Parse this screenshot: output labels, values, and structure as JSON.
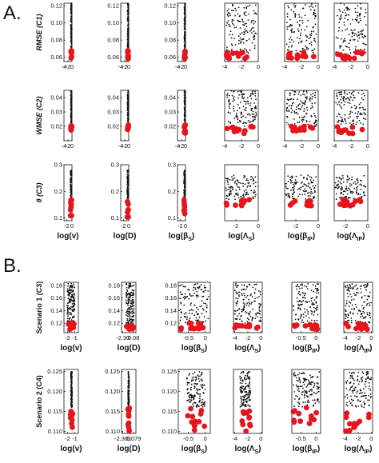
{
  "figure": {
    "label_a": "A.",
    "label_b": "B."
  },
  "colors": {
    "black": "#111111",
    "red": "#e8141c"
  },
  "chart_data": [
    {
      "id": "A-r1-c1",
      "type": "scatter",
      "ylabel": "RMSE (C1)",
      "xticks": [
        "-4",
        "-2",
        "0"
      ],
      "yticks": [
        "0.06",
        "0.08",
        "0.10",
        "0.12"
      ],
      "xlim": [
        -4,
        0
      ],
      "ylim": [
        0.055,
        0.123
      ],
      "black": {
        "xr": [
          -0.6,
          -0.1
        ],
        "yr": [
          0.065,
          0.123
        ],
        "n": 120
      },
      "red": {
        "xr": [
          -0.55,
          -0.1
        ],
        "yr": [
          0.058,
          0.068
        ],
        "n": 10
      }
    },
    {
      "id": "A-r1-c2",
      "type": "scatter",
      "xticks": [
        "-4",
        "-2",
        "0"
      ],
      "yticks": [
        "0.06",
        "0.08",
        "0.10",
        "0.12"
      ],
      "xlim": [
        -4,
        0
      ],
      "ylim": [
        0.055,
        0.123
      ],
      "black": {
        "xr": [
          -0.6,
          -0.1
        ],
        "yr": [
          0.065,
          0.123
        ],
        "n": 120
      },
      "red": {
        "xr": [
          -0.55,
          -0.1
        ],
        "yr": [
          0.058,
          0.068
        ],
        "n": 10
      }
    },
    {
      "id": "A-r1-c3",
      "type": "scatter",
      "xticks": [
        "-4",
        "-2",
        "0"
      ],
      "yticks": [
        "0.06",
        "0.08",
        "0.10",
        "0.12"
      ],
      "xlim": [
        -4,
        0
      ],
      "ylim": [
        0.055,
        0.123
      ],
      "black": {
        "xr": [
          -0.6,
          -0.1
        ],
        "yr": [
          0.065,
          0.123
        ],
        "n": 120
      },
      "red": {
        "xr": [
          -0.55,
          -0.1
        ],
        "yr": [
          0.058,
          0.068
        ],
        "n": 10
      }
    },
    {
      "id": "A-r1-c4",
      "type": "scatter",
      "xticks": [
        "-4",
        "-2",
        "0"
      ],
      "yticks": [],
      "xlim": [
        -4,
        0
      ],
      "ylim": [
        0.055,
        0.123
      ],
      "black": {
        "xr": [
          -3.8,
          -0.2
        ],
        "yr": [
          0.065,
          0.123
        ],
        "n": 130
      },
      "red": {
        "xr": [
          -3.8,
          -0.5
        ],
        "yr": [
          0.058,
          0.066
        ],
        "n": 12
      }
    },
    {
      "id": "A-r1-c5",
      "type": "scatter",
      "xticks": [
        "-4",
        "-2",
        "0"
      ],
      "yticks": [],
      "xlim": [
        -4,
        0
      ],
      "ylim": [
        0.055,
        0.123
      ],
      "black": {
        "xr": [
          -3.8,
          -0.2
        ],
        "yr": [
          0.065,
          0.123
        ],
        "n": 130
      },
      "red": {
        "xr": [
          -3.8,
          -0.5
        ],
        "yr": [
          0.058,
          0.066
        ],
        "n": 12
      }
    },
    {
      "id": "A-r1-c6",
      "type": "scatter",
      "xticks": [
        "-4",
        "-2",
        "0"
      ],
      "yticks": [],
      "xlim": [
        -4,
        0
      ],
      "ylim": [
        0.055,
        0.123
      ],
      "black": {
        "xr": [
          -3.8,
          -0.2
        ],
        "yr": [
          0.065,
          0.123
        ],
        "n": 130
      },
      "red": {
        "xr": [
          -3.8,
          -0.5
        ],
        "yr": [
          0.058,
          0.066
        ],
        "n": 12
      }
    },
    {
      "id": "A-r2-c1",
      "type": "scatter",
      "ylabel": "WMSE (C2)",
      "xticks": [
        "-4",
        "-2",
        "0"
      ],
      "yticks": [
        "0.02",
        "0.03",
        "0.04"
      ],
      "xlim": [
        -4,
        0
      ],
      "ylim": [
        0.01,
        0.045
      ],
      "black": {
        "xr": [
          -0.6,
          -0.1
        ],
        "yr": [
          0.019,
          0.045
        ],
        "n": 110
      },
      "red": {
        "xr": [
          -0.55,
          -0.1
        ],
        "yr": [
          0.015,
          0.021
        ],
        "n": 9
      }
    },
    {
      "id": "A-r2-c2",
      "type": "scatter",
      "xticks": [
        "-4",
        "-2",
        "0"
      ],
      "yticks": [
        "0.02",
        "0.03",
        "0.04"
      ],
      "xlim": [
        -4,
        0
      ],
      "ylim": [
        0.01,
        0.045
      ],
      "black": {
        "xr": [
          -0.6,
          -0.1
        ],
        "yr": [
          0.019,
          0.045
        ],
        "n": 110
      },
      "red": {
        "xr": [
          -0.55,
          -0.1
        ],
        "yr": [
          0.015,
          0.021
        ],
        "n": 9
      }
    },
    {
      "id": "A-r2-c3",
      "type": "scatter",
      "xticks": [
        "-4",
        "-2",
        "0"
      ],
      "yticks": [
        "0.02",
        "0.03",
        "0.04"
      ],
      "xlim": [
        -4,
        0
      ],
      "ylim": [
        0.01,
        0.045
      ],
      "black": {
        "xr": [
          -0.6,
          -0.1
        ],
        "yr": [
          0.019,
          0.045
        ],
        "n": 110
      },
      "red": {
        "xr": [
          -0.55,
          -0.1
        ],
        "yr": [
          0.015,
          0.021
        ],
        "n": 9
      }
    },
    {
      "id": "A-r2-c4",
      "type": "scatter",
      "xticks": [
        "-4",
        "-2",
        "0"
      ],
      "yticks": [],
      "xlim": [
        -4,
        0
      ],
      "ylim": [
        0.01,
        0.045
      ],
      "black": {
        "xr": [
          -3.8,
          -0.2
        ],
        "yr": [
          0.02,
          0.045
        ],
        "n": 130
      },
      "red": {
        "xr": [
          -3.8,
          -0.5
        ],
        "yr": [
          0.015,
          0.02
        ],
        "n": 12
      }
    },
    {
      "id": "A-r2-c5",
      "type": "scatter",
      "xticks": [
        "-4",
        "-2",
        "0"
      ],
      "yticks": [],
      "xlim": [
        -4,
        0
      ],
      "ylim": [
        0.01,
        0.045
      ],
      "black": {
        "xr": [
          -3.8,
          -0.2
        ],
        "yr": [
          0.02,
          0.045
        ],
        "n": 130
      },
      "red": {
        "xr": [
          -3.8,
          -0.5
        ],
        "yr": [
          0.015,
          0.02
        ],
        "n": 12
      }
    },
    {
      "id": "A-r2-c6",
      "type": "scatter",
      "xticks": [
        "-4",
        "-2",
        "0"
      ],
      "yticks": [],
      "xlim": [
        -4,
        0
      ],
      "ylim": [
        0.01,
        0.045
      ],
      "black": {
        "xr": [
          -3.8,
          -0.2
        ],
        "yr": [
          0.02,
          0.045
        ],
        "n": 130
      },
      "red": {
        "xr": [
          -3.8,
          -0.5
        ],
        "yr": [
          0.015,
          0.02
        ],
        "n": 12
      }
    },
    {
      "id": "A-r3-c1",
      "type": "scatter",
      "ylabel": "θ (C3)",
      "xlabel": "log(v)",
      "xticks": [
        "-2",
        "0"
      ],
      "yticks": [
        "0.1",
        "0.2",
        "0.3"
      ],
      "xlim": [
        -3,
        0
      ],
      "ylim": [
        0.09,
        0.3
      ],
      "black": {
        "xr": [
          -0.6,
          -0.1
        ],
        "yr": [
          0.17,
          0.28
        ],
        "n": 80
      },
      "red": {
        "xr": [
          -0.6,
          -0.1
        ],
        "yr": [
          0.1,
          0.17
        ],
        "n": 8
      }
    },
    {
      "id": "A-r3-c2",
      "type": "scatter",
      "xlabel": "log(D)",
      "xticks": [
        "-2",
        "0"
      ],
      "yticks": [
        "0.1",
        "0.2",
        "0.3"
      ],
      "xlim": [
        -3,
        0
      ],
      "ylim": [
        0.09,
        0.3
      ],
      "black": {
        "xr": [
          -0.6,
          -0.1
        ],
        "yr": [
          0.17,
          0.28
        ],
        "n": 80
      },
      "red": {
        "xr": [
          -0.6,
          -0.1
        ],
        "yr": [
          0.1,
          0.17
        ],
        "n": 8
      }
    },
    {
      "id": "A-r3-c3",
      "type": "scatter",
      "xlabel": "log(βS)",
      "xticks": [
        "-2",
        "0"
      ],
      "yticks": [
        "0.1",
        "0.2",
        "0.3"
      ],
      "xlim": [
        -3,
        0
      ],
      "ylim": [
        0.09,
        0.3
      ],
      "black": {
        "xr": [
          -0.6,
          -0.1
        ],
        "yr": [
          0.17,
          0.28
        ],
        "n": 80
      },
      "red": {
        "xr": [
          -0.6,
          -0.1
        ],
        "yr": [
          0.1,
          0.17
        ],
        "n": 8
      }
    },
    {
      "id": "A-r3-c4",
      "type": "scatter",
      "xlabel": "log(ΛS)",
      "xticks": [
        "-2",
        "0"
      ],
      "yticks": [],
      "xlim": [
        -3,
        0
      ],
      "ylim": [
        0.09,
        0.3
      ],
      "black": {
        "xr": [
          -2.9,
          -0.2
        ],
        "yr": [
          0.17,
          0.26
        ],
        "n": 110
      },
      "red": {
        "xr": [
          -2.9,
          -0.5
        ],
        "yr": [
          0.145,
          0.17
        ],
        "n": 12
      }
    },
    {
      "id": "A-r3-c5",
      "type": "scatter",
      "xlabel": "log(βIP)",
      "xticks": [
        "-2",
        "0"
      ],
      "yticks": [],
      "xlim": [
        -3,
        0
      ],
      "ylim": [
        0.09,
        0.3
      ],
      "black": {
        "xr": [
          -2.9,
          -0.2
        ],
        "yr": [
          0.17,
          0.26
        ],
        "n": 110
      },
      "red": {
        "xr": [
          -2.9,
          -0.5
        ],
        "yr": [
          0.145,
          0.17
        ],
        "n": 12
      }
    },
    {
      "id": "A-r3-c6",
      "type": "scatter",
      "xlabel": "log(ΛIP)",
      "xticks": [
        "-2",
        "0"
      ],
      "yticks": [],
      "xlim": [
        -3,
        0
      ],
      "ylim": [
        0.09,
        0.3
      ],
      "black": {
        "xr": [
          -2.9,
          -0.2
        ],
        "yr": [
          0.17,
          0.26
        ],
        "n": 110
      },
      "red": {
        "xr": [
          -2.9,
          -0.5
        ],
        "yr": [
          0.145,
          0.17
        ],
        "n": 12
      }
    },
    {
      "id": "B-r1-c1",
      "type": "scatter",
      "ylabel": "Scenario 1 (C3)",
      "xlabel": "log(v)",
      "xticks": [
        "-2",
        "-1"
      ],
      "yticks": [
        "0.12",
        "0.14",
        "0.16",
        "0.18"
      ],
      "xlim": [
        -2.5,
        -0.5
      ],
      "ylim": [
        0.105,
        0.185
      ],
      "black": {
        "xr": [
          -2.05,
          -1.0
        ],
        "yr": [
          0.118,
          0.183
        ],
        "n": 150
      },
      "red": {
        "xr": [
          -1.95,
          -1.1
        ],
        "yr": [
          0.11,
          0.12
        ],
        "n": 9
      }
    },
    {
      "id": "B-r1-c2",
      "type": "scatter",
      "xlabel": "log(D)",
      "xticks": [
        "-2.30",
        "0.08"
      ],
      "yticks": [
        "0.12",
        "0.14",
        "0.16",
        "0.18"
      ],
      "xlim": [
        -2.6,
        0.6
      ],
      "ylim": [
        0.105,
        0.185
      ],
      "black": {
        "xr": [
          -1.6,
          0.2
        ],
        "yr": [
          0.118,
          0.183
        ],
        "n": 150
      },
      "red": {
        "xr": [
          -1.55,
          0.1
        ],
        "yr": [
          0.11,
          0.12
        ],
        "n": 9
      }
    },
    {
      "id": "B-r1-c3",
      "type": "scatter",
      "xlabel": "log(βS)",
      "xticks": [
        "-0.5",
        "0"
      ],
      "yticks": [
        "0.12",
        "0.14",
        "0.16",
        "0.18"
      ],
      "xlim": [
        -0.8,
        0.15
      ],
      "ylim": [
        0.105,
        0.185
      ],
      "black": {
        "xr": [
          -0.75,
          0.1
        ],
        "yr": [
          0.12,
          0.183
        ],
        "n": 120
      },
      "red": {
        "xr": [
          -0.75,
          0.05
        ],
        "yr": [
          0.11,
          0.12
        ],
        "n": 12
      }
    },
    {
      "id": "B-r1-c4",
      "type": "scatter",
      "xlabel": "log(ΛS)",
      "xticks": [
        "-4",
        "-2",
        "0"
      ],
      "yticks": [],
      "xlim": [
        -4.2,
        0.2
      ],
      "ylim": [
        0.105,
        0.185
      ],
      "black": {
        "xr": [
          -4.0,
          0.0
        ],
        "yr": [
          0.12,
          0.183
        ],
        "n": 130
      },
      "red": {
        "xr": [
          -4.0,
          -0.3
        ],
        "yr": [
          0.11,
          0.12
        ],
        "n": 12
      }
    },
    {
      "id": "B-r1-c5",
      "type": "scatter",
      "xlabel": "log(βIP)",
      "xticks": [
        "-0.5",
        "0"
      ],
      "yticks": [],
      "xlim": [
        -0.8,
        0.15
      ],
      "ylim": [
        0.105,
        0.185
      ],
      "black": {
        "xr": [
          -0.75,
          0.1
        ],
        "yr": [
          0.12,
          0.183
        ],
        "n": 120
      },
      "red": {
        "xr": [
          -0.75,
          0.05
        ],
        "yr": [
          0.11,
          0.12
        ],
        "n": 12
      }
    },
    {
      "id": "B-r1-c6",
      "type": "scatter",
      "xlabel": "log(ΛIP)",
      "xticks": [
        "-4",
        "-2",
        "0"
      ],
      "yticks": [],
      "xlim": [
        -4.2,
        0.2
      ],
      "ylim": [
        0.105,
        0.185
      ],
      "black": {
        "xr": [
          -4.0,
          0.0
        ],
        "yr": [
          0.12,
          0.183
        ],
        "n": 130
      },
      "red": {
        "xr": [
          -4.0,
          -0.3
        ],
        "yr": [
          0.11,
          0.12
        ],
        "n": 12
      }
    },
    {
      "id": "B-r2-c1",
      "type": "scatter",
      "ylabel": "Scenario 2 (C4)",
      "xlabel": "log(v)",
      "xticks": [
        "-2",
        "-1"
      ],
      "yticks": [
        "0.110",
        "0.115",
        "0.120",
        "0.125"
      ],
      "xlim": [
        -2.5,
        -0.5
      ],
      "ylim": [
        0.1095,
        0.1255
      ],
      "black": {
        "xr": [
          -1.55,
          -1.35
        ],
        "yr": [
          0.116,
          0.125
        ],
        "n": 120
      },
      "red": {
        "xr": [
          -1.6,
          -1.3
        ],
        "yr": [
          0.11,
          0.116
        ],
        "n": 10
      }
    },
    {
      "id": "B-r2-c2",
      "type": "scatter",
      "xlabel": "log(D)",
      "xticks": [
        "-2.301",
        "0.079"
      ],
      "yticks": [
        "0.110",
        "0.115",
        "0.120",
        "0.125"
      ],
      "xlim": [
        -2.6,
        0.6
      ],
      "ylim": [
        0.1095,
        0.1255
      ],
      "black": {
        "xr": [
          -1.15,
          -0.9
        ],
        "yr": [
          0.116,
          0.125
        ],
        "n": 120
      },
      "red": {
        "xr": [
          -1.2,
          -0.85
        ],
        "yr": [
          0.11,
          0.116
        ],
        "n": 10
      }
    },
    {
      "id": "B-r2-c3",
      "type": "scatter",
      "xlabel": "log(βS)",
      "xticks": [
        "-0.5",
        "0"
      ],
      "yticks": [
        "0.110",
        "0.115",
        "0.120",
        "0.125"
      ],
      "xlim": [
        -0.8,
        0.15
      ],
      "ylim": [
        0.1095,
        0.1255
      ],
      "black": {
        "xr": [
          -0.55,
          0.0
        ],
        "yr": [
          0.116,
          0.125
        ],
        "n": 130
      },
      "red": {
        "xr": [
          -0.55,
          0.0
        ],
        "yr": [
          0.11,
          0.116
        ],
        "n": 12
      }
    },
    {
      "id": "B-r2-c4",
      "type": "scatter",
      "xlabel": "log(ΛS)",
      "xticks": [
        "-4",
        "-2",
        "0"
      ],
      "yticks": [],
      "xlim": [
        -4.2,
        0.2
      ],
      "ylim": [
        0.1095,
        0.1255
      ],
      "black": {
        "xr": [
          -3.2,
          -1.6
        ],
        "yr": [
          0.116,
          0.125
        ],
        "n": 130
      },
      "red": {
        "xr": [
          -3.2,
          -1.6
        ],
        "yr": [
          0.11,
          0.116
        ],
        "n": 12
      }
    },
    {
      "id": "B-r2-c5",
      "type": "scatter",
      "xlabel": "log(βIP)",
      "xticks": [
        "-0.5",
        "0"
      ],
      "yticks": [],
      "xlim": [
        -0.8,
        0.15
      ],
      "ylim": [
        0.1095,
        0.1255
      ],
      "black": {
        "xr": [
          -0.75,
          0.1
        ],
        "yr": [
          0.116,
          0.125
        ],
        "n": 130
      },
      "red": {
        "xr": [
          -0.75,
          0.05
        ],
        "yr": [
          0.11,
          0.116
        ],
        "n": 12
      }
    },
    {
      "id": "B-r2-c6",
      "type": "scatter",
      "xlabel": "log(ΛIP)",
      "xticks": [
        "-4",
        "-2",
        "0"
      ],
      "yticks": [],
      "xlim": [
        -4.2,
        0.2
      ],
      "ylim": [
        0.1095,
        0.1255
      ],
      "black": {
        "xr": [
          -4.0,
          0.0
        ],
        "yr": [
          0.116,
          0.125
        ],
        "n": 130
      },
      "red": {
        "xr": [
          -4.0,
          -0.3
        ],
        "yr": [
          0.11,
          0.116
        ],
        "n": 12
      }
    }
  ]
}
